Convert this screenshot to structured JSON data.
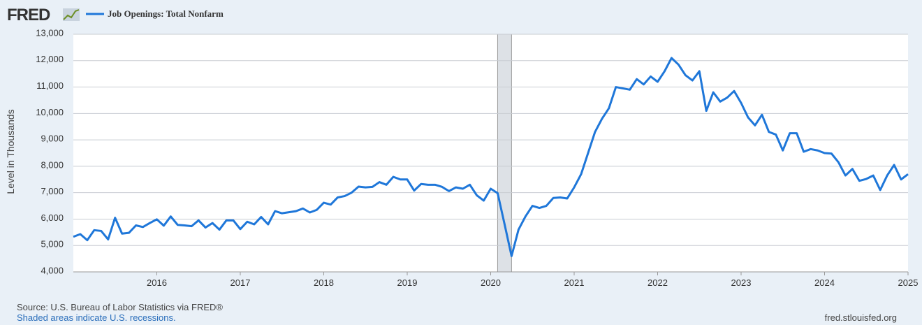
{
  "chart_data": {
    "type": "line",
    "logo": "FRED",
    "ylabel": "Level in Thousands",
    "source": "Source: U.S. Bureau of Labor Statistics via FRED®",
    "note": "Shaded areas indicate U.S. recessions.",
    "site": "fred.stlouisfed.org",
    "xlim": [
      2015,
      2025
    ],
    "xticks": [
      2016,
      2017,
      2018,
      2019,
      2020,
      2021,
      2022,
      2023,
      2024,
      2025
    ],
    "ylim": [
      4000,
      13000
    ],
    "yticks": [
      {
        "value": 4000,
        "label": "4,000"
      },
      {
        "value": 5000,
        "label": "5,000"
      },
      {
        "value": 6000,
        "label": "6,000"
      },
      {
        "value": 7000,
        "label": "7,000"
      },
      {
        "value": 8000,
        "label": "8,000"
      },
      {
        "value": 9000,
        "label": "9,000"
      },
      {
        "value": 10000,
        "label": "10,000"
      },
      {
        "value": 11000,
        "label": "11,000"
      },
      {
        "value": 12000,
        "label": "12,000"
      },
      {
        "value": 13000,
        "label": "13,000"
      }
    ],
    "grid": true,
    "recession_color": "#dde1e6",
    "recessions": [
      {
        "start": "2020-02",
        "end": "2020-04"
      }
    ],
    "series": [
      {
        "name": "Job Openings: Total Nonfarm",
        "color": "#1f77d9",
        "x": [
          "2015-01",
          "2015-02",
          "2015-03",
          "2015-04",
          "2015-05",
          "2015-06",
          "2015-07",
          "2015-08",
          "2015-09",
          "2015-10",
          "2015-11",
          "2015-12",
          "2016-01",
          "2016-02",
          "2016-03",
          "2016-04",
          "2016-05",
          "2016-06",
          "2016-07",
          "2016-08",
          "2016-09",
          "2016-10",
          "2016-11",
          "2016-12",
          "2017-01",
          "2017-02",
          "2017-03",
          "2017-04",
          "2017-05",
          "2017-06",
          "2017-07",
          "2017-08",
          "2017-09",
          "2017-10",
          "2017-11",
          "2017-12",
          "2018-01",
          "2018-02",
          "2018-03",
          "2018-04",
          "2018-05",
          "2018-06",
          "2018-07",
          "2018-08",
          "2018-09",
          "2018-10",
          "2018-11",
          "2018-12",
          "2019-01",
          "2019-02",
          "2019-03",
          "2019-04",
          "2019-05",
          "2019-06",
          "2019-07",
          "2019-08",
          "2019-09",
          "2019-10",
          "2019-11",
          "2019-12",
          "2020-01",
          "2020-02",
          "2020-03",
          "2020-04",
          "2020-05",
          "2020-06",
          "2020-07",
          "2020-08",
          "2020-09",
          "2020-10",
          "2020-11",
          "2020-12",
          "2021-01",
          "2021-02",
          "2021-03",
          "2021-04",
          "2021-05",
          "2021-06",
          "2021-07",
          "2021-08",
          "2021-09",
          "2021-10",
          "2021-11",
          "2021-12",
          "2022-01",
          "2022-02",
          "2022-03",
          "2022-04",
          "2022-05",
          "2022-06",
          "2022-07",
          "2022-08",
          "2022-09",
          "2022-10",
          "2022-11",
          "2022-12",
          "2023-01",
          "2023-02",
          "2023-03",
          "2023-04",
          "2023-05",
          "2023-06",
          "2023-07",
          "2023-08",
          "2023-09",
          "2023-10",
          "2023-11",
          "2023-12",
          "2024-01",
          "2024-02",
          "2024-03",
          "2024-04",
          "2024-05",
          "2024-06",
          "2024-07",
          "2024-08",
          "2024-09",
          "2024-10",
          "2024-11",
          "2024-12",
          "2025-01"
        ],
        "values": [
          5330,
          5430,
          5200,
          5580,
          5550,
          5230,
          6050,
          5450,
          5480,
          5760,
          5700,
          5850,
          5990,
          5750,
          6100,
          5780,
          5760,
          5730,
          5950,
          5680,
          5850,
          5600,
          5950,
          5950,
          5620,
          5900,
          5800,
          6080,
          5800,
          6300,
          6220,
          6260,
          6300,
          6400,
          6250,
          6350,
          6620,
          6550,
          6820,
          6870,
          7000,
          7230,
          7200,
          7220,
          7400,
          7300,
          7600,
          7500,
          7500,
          7080,
          7330,
          7300,
          7300,
          7220,
          7060,
          7200,
          7150,
          7300,
          6900,
          6700,
          7150,
          6980,
          5800,
          4600,
          5600,
          6100,
          6500,
          6420,
          6500,
          6800,
          6820,
          6780,
          7200,
          7700,
          8500,
          9300,
          9800,
          10200,
          11000,
          10950,
          10900,
          11300,
          11100,
          11400,
          11200,
          11600,
          12100,
          11850,
          11450,
          11250,
          11600,
          10100,
          10800,
          10450,
          10600,
          10850,
          10400,
          9850,
          9550,
          9950,
          9300,
          9200,
          8600,
          9250,
          9250,
          8550,
          8650,
          8600,
          8500,
          8480,
          8150,
          7650,
          7900,
          7450,
          7520,
          7650,
          7100,
          7650,
          8050,
          7500,
          7700
        ]
      }
    ]
  }
}
